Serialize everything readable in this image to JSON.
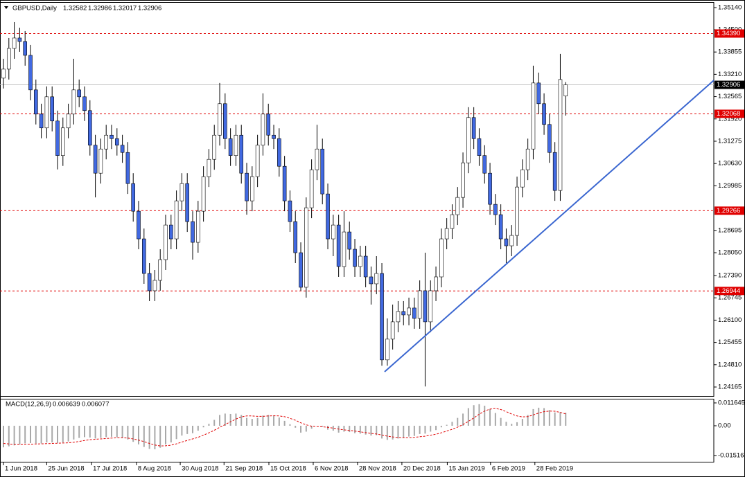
{
  "chart_data": {
    "type": "candlestick",
    "symbol_label": "GBPUSD,Daily",
    "bull_color": "#ffffff",
    "bear_color": "#4169e1",
    "wick_color": "#000000",
    "open": [
      1.331,
      1.3336,
      1.3396,
      1.3426,
      1.3416,
      1.3376,
      1.3276,
      1.3206,
      1.3166,
      1.3256,
      1.3186,
      1.3086,
      1.3166,
      1.3206,
      1.3276,
      1.3256,
      1.3216,
      1.3116,
      1.3035,
      1.3105,
      1.3145,
      1.3135,
      1.3116,
      1.3095,
      1.3005,
      1.2925,
      1.2845,
      1.2745,
      1.2695,
      1.2725,
      1.2785,
      1.2885,
      1.2845,
      1.2955,
      1.3005,
      1.2895,
      1.2835,
      1.2925,
      1.3025,
      1.3075,
      1.3145,
      1.3236,
      1.3135,
      1.3086,
      1.3145,
      1.3035,
      1.2955,
      1.3025,
      1.3116,
      1.3206,
      1.3145,
      1.3135,
      1.3055,
      1.2955,
      1.2895,
      1.2805,
      1.2705,
      1.2935,
      1.3045,
      1.3105,
      1.2975,
      1.2845,
      1.2885,
      1.2765,
      1.2865,
      1.2815,
      1.2765,
      1.2795,
      1.2735,
      1.2715,
      1.2745,
      1.2495,
      1.2555,
      1.2605,
      1.2635,
      1.2625,
      1.2645,
      1.2615,
      1.2695,
      1.2605,
      1.2695,
      1.2735,
      1.2845,
      1.2875,
      1.2915,
      1.2965,
      1.3065,
      1.3196,
      1.3135,
      1.3086,
      1.3035,
      1.2945,
      1.2915,
      1.2845,
      1.2825,
      1.2855,
      1.2995,
      1.3045,
      1.3105,
      1.3296,
      1.3236,
      1.3176,
      1.3095,
      1.2985,
      1.32582
    ],
    "high": [
      1.3366,
      1.3426,
      1.3472,
      1.3456,
      1.3446,
      1.3406,
      1.3306,
      1.3236,
      1.3286,
      1.3286,
      1.3216,
      1.3196,
      1.3236,
      1.3366,
      1.3306,
      1.3286,
      1.3246,
      1.3146,
      1.3135,
      1.3175,
      1.3175,
      1.3165,
      1.3146,
      1.3125,
      1.3035,
      1.2955,
      1.2875,
      1.2775,
      1.2755,
      1.2815,
      1.2915,
      1.2915,
      1.2985,
      1.3035,
      1.3035,
      1.2925,
      1.2955,
      1.3055,
      1.3105,
      1.3175,
      1.3296,
      1.3266,
      1.3165,
      1.3175,
      1.3175,
      1.3065,
      1.3055,
      1.3146,
      1.3266,
      1.3236,
      1.3175,
      1.3165,
      1.3085,
      1.2985,
      1.2925,
      1.2835,
      1.2965,
      1.3075,
      1.3175,
      1.3135,
      1.3005,
      1.2915,
      1.2915,
      1.2925,
      1.2895,
      1.2845,
      1.2825,
      1.2825,
      1.2765,
      1.2795,
      1.2775,
      1.2615,
      1.2655,
      1.2665,
      1.2665,
      1.2675,
      1.2675,
      1.2725,
      1.2805,
      1.2725,
      1.2765,
      1.2875,
      1.2905,
      1.2945,
      1.2995,
      1.3095,
      1.3226,
      1.3226,
      1.3165,
      1.3116,
      1.3065,
      1.2975,
      1.2945,
      1.2875,
      1.2885,
      1.3025,
      1.3075,
      1.3135,
      1.3346,
      1.3326,
      1.3266,
      1.3206,
      1.3125,
      1.338,
      1.32986
    ],
    "low": [
      1.328,
      1.3306,
      1.3366,
      1.3386,
      1.3346,
      1.3246,
      1.3176,
      1.3136,
      1.3136,
      1.3156,
      1.3046,
      1.3056,
      1.3136,
      1.3176,
      1.3226,
      1.3186,
      1.3086,
      1.2965,
      1.3005,
      1.3075,
      1.3105,
      1.3086,
      1.3065,
      1.2975,
      1.2895,
      1.2815,
      1.2715,
      1.2665,
      1.2665,
      1.2695,
      1.2755,
      1.2815,
      1.2815,
      1.2925,
      1.2865,
      1.2785,
      1.2805,
      1.2895,
      1.2995,
      1.3045,
      1.3115,
      1.3105,
      1.3056,
      1.3056,
      1.3005,
      1.2915,
      1.2925,
      1.2995,
      1.3086,
      1.3115,
      1.3105,
      1.3025,
      1.2925,
      1.2865,
      1.2775,
      1.2695,
      1.2675,
      1.2905,
      1.3015,
      1.2945,
      1.2815,
      1.2795,
      1.2735,
      1.2735,
      1.2785,
      1.2735,
      1.2735,
      1.2705,
      1.2655,
      1.2685,
      1.2478,
      1.2478,
      1.2525,
      1.2575,
      1.2595,
      1.2595,
      1.2585,
      1.2585,
      1.2418,
      1.2575,
      1.2665,
      1.2705,
      1.2815,
      1.2845,
      1.2885,
      1.2935,
      1.3035,
      1.3105,
      1.3056,
      1.3005,
      1.2915,
      1.2885,
      1.2815,
      1.2775,
      1.2795,
      1.2825,
      1.2965,
      1.3015,
      1.3075,
      1.3206,
      1.3146,
      1.3065,
      1.2955,
      1.2955,
      1.32017
    ],
    "close": [
      1.3336,
      1.3396,
      1.3426,
      1.3416,
      1.3376,
      1.3276,
      1.3206,
      1.3166,
      1.3256,
      1.3186,
      1.3086,
      1.3166,
      1.3206,
      1.3276,
      1.3256,
      1.3216,
      1.3116,
      1.3035,
      1.3105,
      1.3145,
      1.3135,
      1.3116,
      1.3095,
      1.3005,
      1.2925,
      1.2845,
      1.2745,
      1.2695,
      1.2725,
      1.2785,
      1.2885,
      1.2845,
      1.2955,
      1.3005,
      1.2895,
      1.2835,
      1.2925,
      1.3025,
      1.3075,
      1.3145,
      1.3236,
      1.3135,
      1.3086,
      1.3145,
      1.3035,
      1.2955,
      1.3025,
      1.3116,
      1.3206,
      1.3145,
      1.3135,
      1.3055,
      1.2955,
      1.2895,
      1.2805,
      1.2705,
      1.2935,
      1.3045,
      1.3105,
      1.2975,
      1.2845,
      1.2885,
      1.2765,
      1.2865,
      1.2815,
      1.2765,
      1.2795,
      1.2735,
      1.2715,
      1.2745,
      1.2495,
      1.2555,
      1.2605,
      1.2635,
      1.2625,
      1.2645,
      1.2615,
      1.2695,
      1.2605,
      1.2695,
      1.2735,
      1.2845,
      1.2875,
      1.2915,
      1.2965,
      1.3065,
      1.3196,
      1.3135,
      1.3086,
      1.3035,
      1.2945,
      1.2915,
      1.2845,
      1.2825,
      1.2855,
      1.2995,
      1.3045,
      1.3105,
      1.3296,
      1.3236,
      1.3176,
      1.3095,
      1.2985,
      1.3306,
      1.32906
    ],
    "xlim": [
      -0.64,
      131.4
    ],
    "xticks": [
      {
        "value": 0,
        "label": "1 Jun 2018"
      },
      {
        "value": 8,
        "label": "25 Jun 2018"
      },
      {
        "value": 16.3,
        "label": "17 Jul 2018"
      },
      {
        "value": 24.6,
        "label": "8 Aug 2018"
      },
      {
        "value": 32.7,
        "label": "30 Aug 2018"
      },
      {
        "value": 40.8,
        "label": "21 Sep 2018"
      },
      {
        "value": 49.1,
        "label": "15 Oct 2018"
      },
      {
        "value": 57.3,
        "label": "6 Nov 2018"
      },
      {
        "value": 65.5,
        "label": "28 Nov 2018"
      },
      {
        "value": 73.7,
        "label": "20 Dec 2018"
      },
      {
        "value": 82.1,
        "label": "15 Jan 2019"
      },
      {
        "value": 90.1,
        "label": "6 Feb 2019"
      },
      {
        "value": 98.3,
        "label": "28 Feb 2019"
      }
    ],
    "ylim": [
      1.23905,
      1.353
    ],
    "yticks": [
      {
        "value": 1.3514,
        "label": "1.35140"
      },
      {
        "value": 1.345,
        "label": "1.34500"
      },
      1.33855,
      {
        "value": 1.3321,
        "label": "1.33210"
      },
      1.32565,
      {
        "value": 1.3192,
        "label": "1.31920"
      },
      1.31275,
      {
        "value": 1.3063,
        "label": "1.30630"
      },
      1.29985,
      1.28695,
      {
        "value": 1.2805,
        "label": "1.28050"
      },
      {
        "value": 1.2739,
        "label": "1.27390"
      },
      1.26745,
      {
        "value": 1.261,
        "label": "1.26100"
      },
      1.25455,
      {
        "value": 1.2481,
        "label": "1.24810"
      },
      1.24165
    ],
    "grid": false,
    "levels": [
      {
        "value": 1.3439,
        "label": "1.34390"
      },
      {
        "value": 1.32068,
        "label": "1.32068"
      },
      {
        "value": 1.29266,
        "label": "1.29266"
      },
      {
        "value": 1.26944,
        "label": "1.26944"
      }
    ],
    "level_color": "#e00000",
    "price_line_color": "#c0c0c0",
    "trendline": {
      "x": [
        70.5,
        131.4
      ],
      "y": [
        1.24605,
        1.33037
      ],
      "color": "#3a66d0"
    },
    "indicator": {
      "type": "macd",
      "label": "MACD(12,26,9)",
      "ylim": [
        -0.01835,
        0.0134
      ],
      "yticks": [
        0.011645,
        {
          "value": 0,
          "label": "0.00"
        },
        -0.015166
      ],
      "macd": {
        "color": "#a8a8a8",
        "values": [
          -0.011,
          -0.0105,
          -0.01,
          -0.0095,
          -0.009,
          -0.0088,
          -0.009,
          -0.009,
          -0.0085,
          -0.0085,
          -0.0088,
          -0.0085,
          -0.008,
          -0.007,
          -0.0062,
          -0.0058,
          -0.006,
          -0.0065,
          -0.0062,
          -0.0058,
          -0.0056,
          -0.0058,
          -0.0062,
          -0.007,
          -0.0082,
          -0.0095,
          -0.0108,
          -0.0118,
          -0.012,
          -0.0112,
          -0.0095,
          -0.0085,
          -0.0068,
          -0.005,
          -0.0042,
          -0.0038,
          -0.0025,
          -0.0008,
          0.001,
          0.003,
          0.0055,
          0.0062,
          0.006,
          0.0062,
          0.0055,
          0.004,
          0.0035,
          0.004,
          0.0052,
          0.0055,
          0.0052,
          0.0042,
          0.0025,
          0.0008,
          -0.001,
          -0.0035,
          -0.003,
          -0.0015,
          0.0,
          -0.0005,
          -0.002,
          -0.0025,
          -0.0035,
          -0.003,
          -0.0032,
          -0.0038,
          -0.004,
          -0.0045,
          -0.005,
          -0.0048,
          -0.0065,
          -0.0072,
          -0.007,
          -0.0065,
          -0.006,
          -0.0055,
          -0.0052,
          -0.0042,
          -0.004,
          -0.003,
          -0.0022,
          -0.0008,
          0.0005,
          0.002,
          0.004,
          0.0062,
          0.009,
          0.0105,
          0.011,
          0.0102,
          0.0085,
          0.0065,
          0.004,
          0.002,
          0.001,
          0.0018,
          0.0035,
          0.0055,
          0.0085,
          0.0092,
          0.009,
          0.008,
          0.0068,
          0.007,
          0.006639
        ]
      },
      "signal": {
        "color": "#e00000",
        "values": [
          -0.009,
          -0.0093,
          -0.0095,
          -0.0096,
          -0.0095,
          -0.0094,
          -0.0093,
          -0.0092,
          -0.0091,
          -0.009,
          -0.0089,
          -0.0088,
          -0.0087,
          -0.0084,
          -0.008,
          -0.0075,
          -0.0071,
          -0.0069,
          -0.0067,
          -0.0065,
          -0.0063,
          -0.0061,
          -0.0061,
          -0.0063,
          -0.0067,
          -0.0073,
          -0.0081,
          -0.009,
          -0.0098,
          -0.0103,
          -0.0102,
          -0.0099,
          -0.0092,
          -0.0083,
          -0.0075,
          -0.0067,
          -0.0059,
          -0.0048,
          -0.0036,
          -0.0023,
          -0.0008,
          0.0006,
          0.002,
          0.0034,
          0.0045,
          0.005,
          0.005,
          0.0048,
          0.0048,
          0.005,
          0.0051,
          0.005,
          0.0046,
          0.0038,
          0.0028,
          0.0015,
          0.0005,
          -0.0002,
          -0.0004,
          -0.0005,
          -0.0008,
          -0.0012,
          -0.0017,
          -0.0021,
          -0.0024,
          -0.0027,
          -0.0031,
          -0.0035,
          -0.0039,
          -0.0042,
          -0.0047,
          -0.0053,
          -0.0057,
          -0.006,
          -0.0061,
          -0.0061,
          -0.0059,
          -0.0056,
          -0.0053,
          -0.0048,
          -0.0043,
          -0.0036,
          -0.0027,
          -0.0018,
          -0.0007,
          0.0006,
          0.0022,
          0.004,
          0.0059,
          0.0075,
          0.0085,
          0.0088,
          0.0083,
          0.0072,
          0.006,
          0.005,
          0.0045,
          0.0047,
          0.0055,
          0.0065,
          0.0072,
          0.0075,
          0.0074,
          0.0068,
          0.006077
        ]
      }
    }
  }
}
